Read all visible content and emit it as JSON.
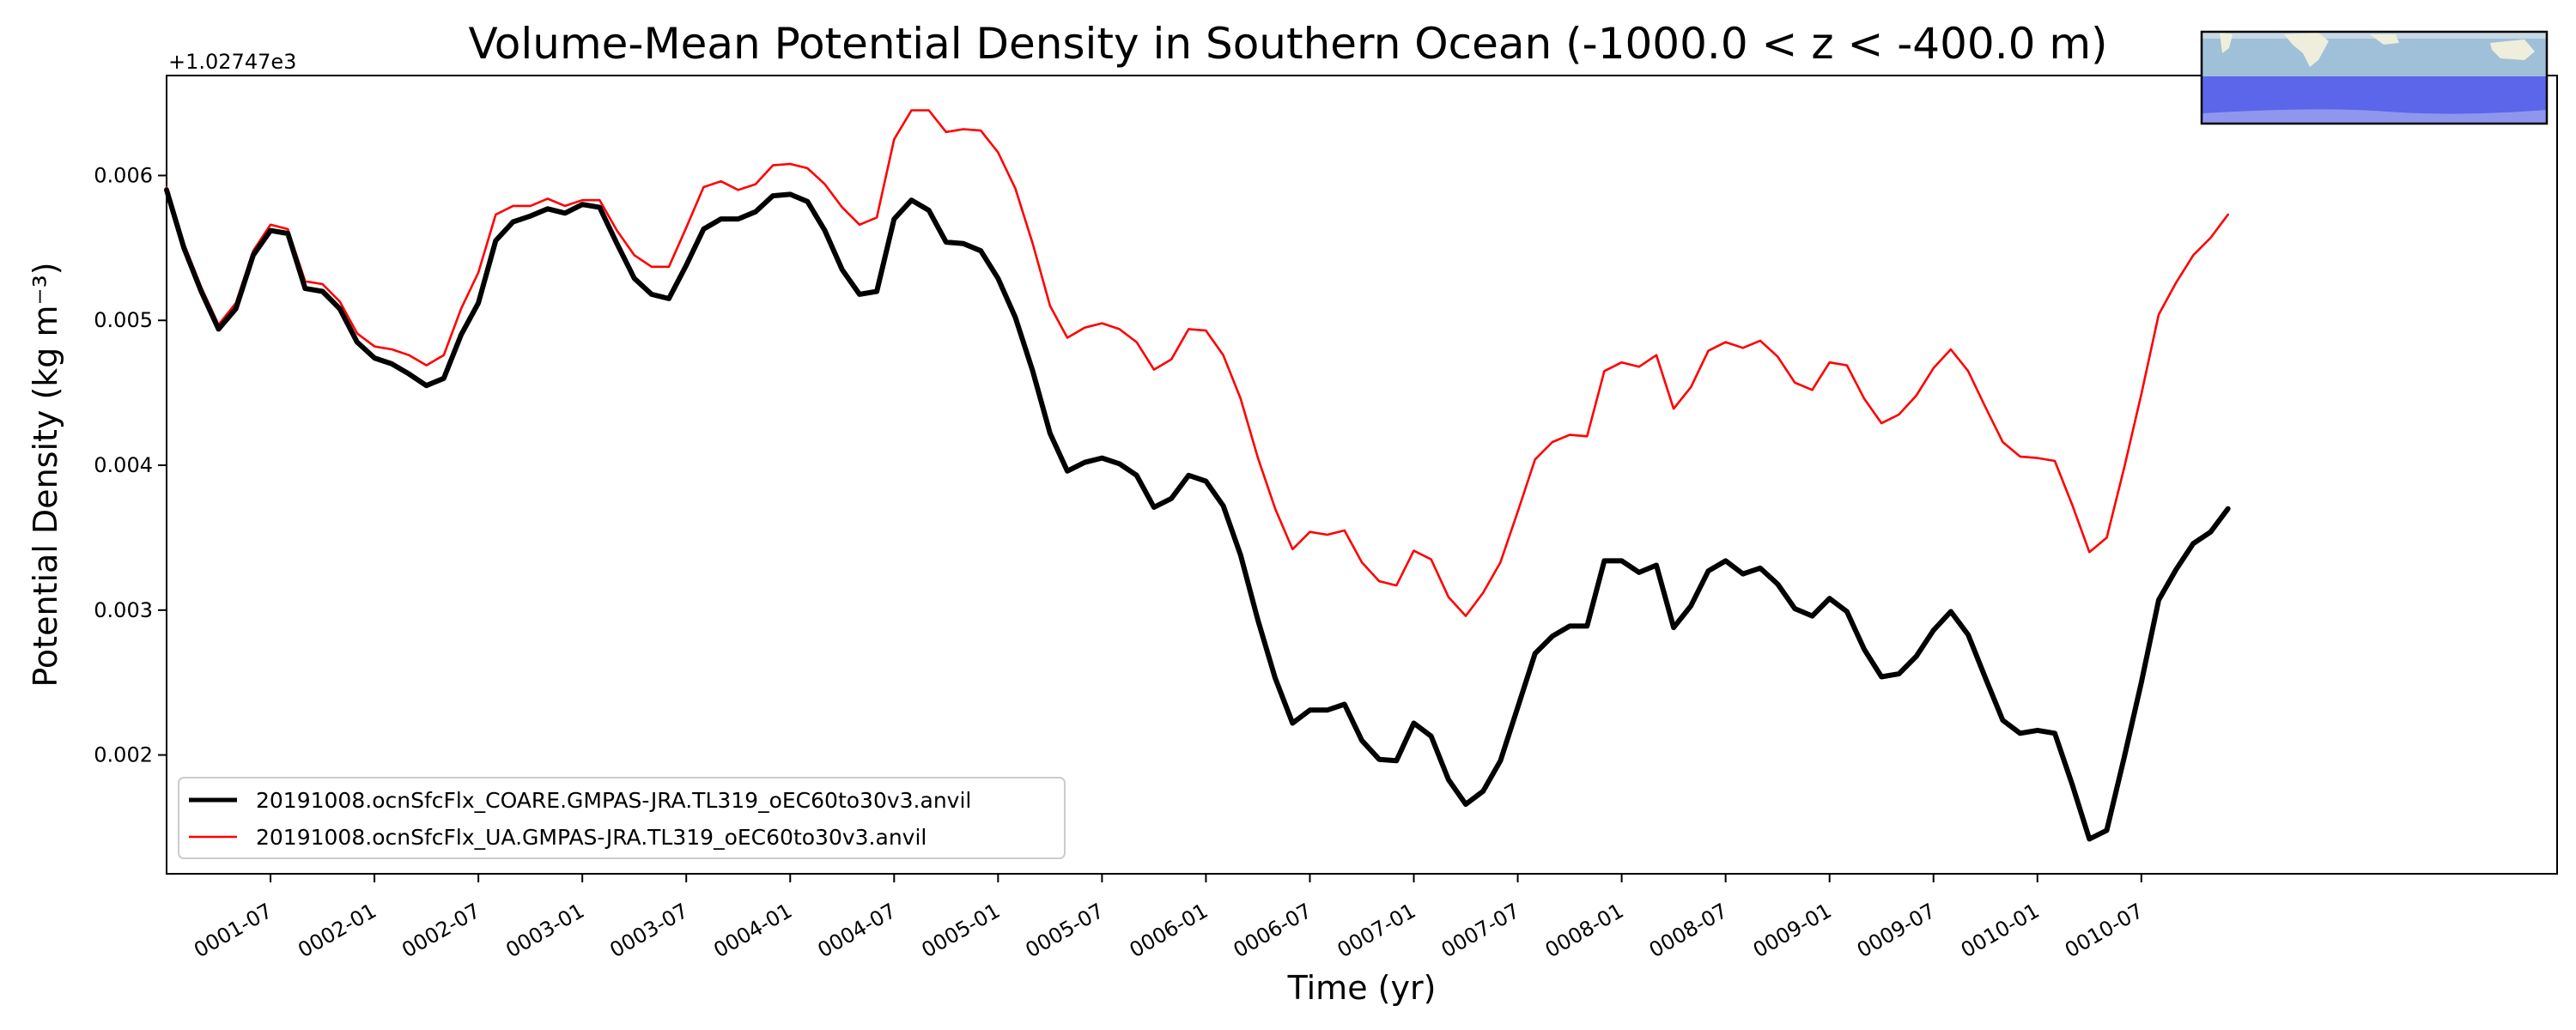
{
  "chart_data": {
    "type": "line",
    "title": "Volume-Mean Potential Density in Southern Ocean (-1000.0 < z < -400.0 m)",
    "xlabel": "Time (yr)",
    "ylabel": "Potential Density (kg m⁻³)",
    "y_offset_label": "+1.02747e3",
    "xlim": [
      0,
      138
    ],
    "ylim": [
      0.00118,
      0.00669
    ],
    "x_ticks": [
      {
        "label": "0001-07",
        "value": 6
      },
      {
        "label": "0002-01",
        "value": 12
      },
      {
        "label": "0002-07",
        "value": 18
      },
      {
        "label": "0003-01",
        "value": 24
      },
      {
        "label": "0003-07",
        "value": 30
      },
      {
        "label": "0004-01",
        "value": 36
      },
      {
        "label": "0004-07",
        "value": 42
      },
      {
        "label": "0005-01",
        "value": 48
      },
      {
        "label": "0005-07",
        "value": 54
      },
      {
        "label": "0006-01",
        "value": 60
      },
      {
        "label": "0006-07",
        "value": 66
      },
      {
        "label": "0007-01",
        "value": 72
      },
      {
        "label": "0007-07",
        "value": 78
      },
      {
        "label": "0008-01",
        "value": 84
      },
      {
        "label": "0008-07",
        "value": 90
      },
      {
        "label": "0009-01",
        "value": 96
      },
      {
        "label": "0009-07",
        "value": 102
      },
      {
        "label": "0010-01",
        "value": 108
      },
      {
        "label": "0010-07",
        "value": 114
      }
    ],
    "y_ticks": [
      {
        "label": "0.002",
        "value": 0.002
      },
      {
        "label": "0.003",
        "value": 0.003
      },
      {
        "label": "0.004",
        "value": 0.004
      },
      {
        "label": "0.005",
        "value": 0.005
      },
      {
        "label": "0.006",
        "value": 0.006
      }
    ],
    "legend_position": "lower-left",
    "series": [
      {
        "name": "20191008.ocnSfcFlx_COARE.GMPAS-JRA.TL319_oEC60to30v3.anvil",
        "color": "#000000",
        "x": [
          0,
          1,
          2,
          3,
          4,
          5,
          6,
          7,
          8,
          9,
          10,
          11,
          12,
          13,
          14,
          15,
          16,
          17,
          18,
          19,
          20,
          21,
          22,
          23,
          24,
          25,
          26,
          27,
          28,
          29,
          30,
          31,
          32,
          33,
          34,
          35,
          36,
          37,
          38,
          39,
          40,
          41,
          42,
          43,
          44,
          45,
          46,
          47,
          48,
          49,
          50,
          51,
          52,
          53,
          54,
          55,
          56,
          57,
          58,
          59,
          60,
          61,
          62,
          63,
          64,
          65,
          66,
          67,
          68,
          69,
          70,
          71,
          72,
          73,
          74,
          75,
          76,
          77,
          78,
          79,
          80,
          81,
          82,
          83,
          84,
          85,
          86,
          87,
          88,
          89,
          90,
          91,
          92,
          93,
          94,
          95,
          96,
          97,
          98,
          99,
          100,
          101,
          102,
          103,
          104,
          105,
          106,
          107,
          108,
          109,
          110,
          111,
          112,
          113,
          114,
          115,
          116,
          117,
          118,
          119
        ],
        "values": [
          0.0059,
          0.0055,
          0.0052,
          0.00494,
          0.00508,
          0.00545,
          0.00562,
          0.0056,
          0.00522,
          0.0052,
          0.00508,
          0.00485,
          0.00474,
          0.0047,
          0.00463,
          0.00455,
          0.0046,
          0.0049,
          0.00512,
          0.00555,
          0.00568,
          0.00572,
          0.00577,
          0.00574,
          0.0058,
          0.00578,
          0.00553,
          0.00529,
          0.00518,
          0.00515,
          0.00538,
          0.00563,
          0.0057,
          0.0057,
          0.00575,
          0.00586,
          0.00587,
          0.00582,
          0.00562,
          0.00535,
          0.00518,
          0.0052,
          0.0057,
          0.00583,
          0.00576,
          0.00554,
          0.00553,
          0.00548,
          0.00529,
          0.00502,
          0.00465,
          0.00422,
          0.00396,
          0.00402,
          0.00405,
          0.00401,
          0.00393,
          0.00371,
          0.00377,
          0.00393,
          0.00389,
          0.00372,
          0.00338,
          0.00293,
          0.00253,
          0.00222,
          0.00231,
          0.00231,
          0.00235,
          0.0021,
          0.00197,
          0.00196,
          0.00222,
          0.00213,
          0.00183,
          0.00166,
          0.00175,
          0.00196,
          0.00233,
          0.0027,
          0.00282,
          0.00289,
          0.00289,
          0.00334,
          0.00334,
          0.00326,
          0.00331,
          0.00288,
          0.00303,
          0.00327,
          0.00334,
          0.00325,
          0.00329,
          0.00318,
          0.00301,
          0.00296,
          0.00308,
          0.00299,
          0.00273,
          0.00254,
          0.00256,
          0.00268,
          0.00286,
          0.00299,
          0.00283,
          0.00253,
          0.00224,
          0.00215,
          0.00217,
          0.00215,
          0.0018,
          0.00142,
          0.00148,
          0.00198,
          0.0025,
          0.00307,
          0.00328,
          0.00346,
          0.00354,
          0.0037
        ]
      },
      {
        "name": "20191008.ocnSfcFlx_UA.GMPAS-JRA.TL319_oEC60to30v3.anvil",
        "color": "#ff0000",
        "x": [
          0,
          1,
          2,
          3,
          4,
          5,
          6,
          7,
          8,
          9,
          10,
          11,
          12,
          13,
          14,
          15,
          16,
          17,
          18,
          19,
          20,
          21,
          22,
          23,
          24,
          25,
          26,
          27,
          28,
          29,
          30,
          31,
          32,
          33,
          34,
          35,
          36,
          37,
          38,
          39,
          40,
          41,
          42,
          43,
          44,
          45,
          46,
          47,
          48,
          49,
          50,
          51,
          52,
          53,
          54,
          55,
          56,
          57,
          58,
          59,
          60,
          61,
          62,
          63,
          64,
          65,
          66,
          67,
          68,
          69,
          70,
          71,
          72,
          73,
          74,
          75,
          76,
          77,
          78,
          79,
          80,
          81,
          82,
          83,
          84,
          85,
          86,
          87,
          88,
          89,
          90,
          91,
          92,
          93,
          94,
          95,
          96,
          97,
          98,
          99,
          100,
          101,
          102,
          103,
          104,
          105,
          106,
          107,
          108,
          109,
          110,
          111,
          112,
          113,
          114,
          115,
          116,
          117,
          118,
          119
        ],
        "values": [
          0.00592,
          0.00553,
          0.00523,
          0.00497,
          0.00512,
          0.00548,
          0.00566,
          0.00563,
          0.00527,
          0.00525,
          0.00513,
          0.00491,
          0.00482,
          0.0048,
          0.00476,
          0.00469,
          0.00476,
          0.00508,
          0.00533,
          0.00573,
          0.00579,
          0.00579,
          0.00584,
          0.00579,
          0.00583,
          0.00583,
          0.00562,
          0.00545,
          0.00537,
          0.00537,
          0.00564,
          0.00592,
          0.00596,
          0.0059,
          0.00594,
          0.00607,
          0.00608,
          0.00605,
          0.00594,
          0.00578,
          0.00566,
          0.00571,
          0.00625,
          0.00645,
          0.00645,
          0.0063,
          0.00632,
          0.00631,
          0.00616,
          0.00591,
          0.00553,
          0.0051,
          0.00488,
          0.00495,
          0.00498,
          0.00494,
          0.00485,
          0.00466,
          0.00473,
          0.00494,
          0.00493,
          0.00476,
          0.00446,
          0.00405,
          0.0037,
          0.00342,
          0.00354,
          0.00352,
          0.00355,
          0.00333,
          0.0032,
          0.00317,
          0.00341,
          0.00335,
          0.00309,
          0.00296,
          0.00312,
          0.00333,
          0.00368,
          0.00404,
          0.00416,
          0.00421,
          0.0042,
          0.00465,
          0.00471,
          0.00468,
          0.00476,
          0.00439,
          0.00454,
          0.00479,
          0.00485,
          0.00481,
          0.00486,
          0.00475,
          0.00457,
          0.00452,
          0.00471,
          0.00469,
          0.00446,
          0.00429,
          0.00435,
          0.00448,
          0.00467,
          0.0048,
          0.00465,
          0.0044,
          0.00416,
          0.00406,
          0.00405,
          0.00403,
          0.00373,
          0.0034,
          0.0035,
          0.00398,
          0.00449,
          0.00504,
          0.00526,
          0.00545,
          0.00557,
          0.00573
        ]
      }
    ]
  }
}
